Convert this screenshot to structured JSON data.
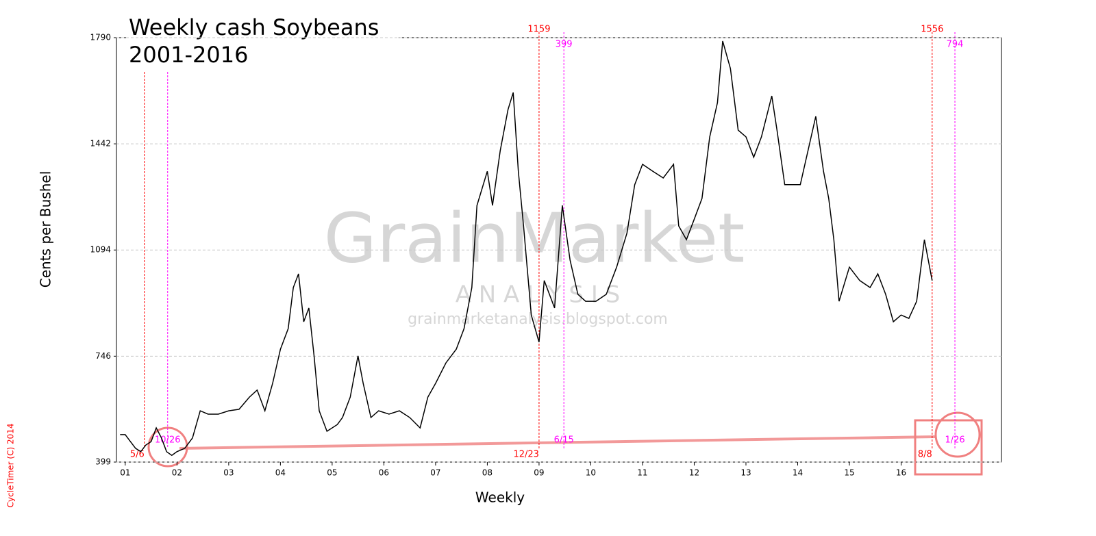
{
  "chart_data": {
    "type": "line",
    "title": "Weekly cash Soybeans",
    "subtitle": "2001-2016",
    "y_label": "Cents per Bushel",
    "x_label": "Weekly",
    "watermark": [
      "GrainMarket",
      "A N A L Y S I S",
      "grainmarketanalysis.blogspot.com"
    ],
    "credit": "CycleTimer (C) 2014",
    "color": "#000000",
    "grid": true,
    "xlim": [
      2000.83,
      2017.94
    ],
    "ylim": [
      399,
      1790
    ],
    "yticks": [
      399,
      746,
      1094,
      1442,
      1790
    ],
    "xticks": [
      {
        "value": 2001,
        "label": "01"
      },
      {
        "value": 2002,
        "label": "02"
      },
      {
        "value": 2003,
        "label": "03"
      },
      {
        "value": 2004,
        "label": "04"
      },
      {
        "value": 2005,
        "label": "05"
      },
      {
        "value": 2006,
        "label": "06"
      },
      {
        "value": 2007,
        "label": "07"
      },
      {
        "value": 2008,
        "label": "08"
      },
      {
        "value": 2009,
        "label": "09"
      },
      {
        "value": 2010,
        "label": "10"
      },
      {
        "value": 2011,
        "label": "11"
      },
      {
        "value": 2012,
        "label": "12"
      },
      {
        "value": 2013,
        "label": "13"
      },
      {
        "value": 2014,
        "label": "14"
      },
      {
        "value": 2015,
        "label": "15"
      },
      {
        "value": 2016,
        "label": "16"
      }
    ],
    "x": [
      2000.9,
      2001.0,
      2001.1,
      2001.2,
      2001.3,
      2001.4,
      2001.5,
      2001.6,
      2001.7,
      2001.8,
      2001.9,
      2002.0,
      2002.15,
      2002.3,
      2002.45,
      2002.6,
      2002.8,
      2003.0,
      2003.2,
      2003.4,
      2003.55,
      2003.7,
      2003.85,
      2004.0,
      2004.15,
      2004.25,
      2004.35,
      2004.45,
      2004.55,
      2004.65,
      2004.75,
      2004.9,
      2005.1,
      2005.2,
      2005.35,
      2005.5,
      2005.6,
      2005.75,
      2005.9,
      2006.1,
      2006.3,
      2006.5,
      2006.7,
      2006.85,
      2007.0,
      2007.2,
      2007.4,
      2007.55,
      2007.7,
      2007.8,
      2008.0,
      2008.1,
      2008.25,
      2008.4,
      2008.5,
      2008.6,
      2008.7,
      2008.85,
      2009.0,
      2009.1,
      2009.3,
      2009.45,
      2009.6,
      2009.75,
      2009.9,
      2010.1,
      2010.3,
      2010.5,
      2010.7,
      2010.85,
      2011.0,
      2011.2,
      2011.4,
      2011.6,
      2011.7,
      2011.85,
      2012.0,
      2012.15,
      2012.3,
      2012.45,
      2012.55,
      2012.7,
      2012.85,
      2013.0,
      2013.15,
      2013.3,
      2013.5,
      2013.6,
      2013.75,
      2013.9,
      2014.05,
      2014.2,
      2014.35,
      2014.5,
      2014.6,
      2014.7,
      2014.8,
      2015.0,
      2015.2,
      2015.4,
      2015.55,
      2015.7,
      2015.85,
      2016.0,
      2016.15,
      2016.3,
      2016.45,
      2016.6
    ],
    "values": [
      489,
      489,
      466,
      444,
      433,
      455,
      466,
      511,
      478,
      433,
      421,
      433,
      444,
      478,
      567,
      556,
      556,
      567,
      572,
      612,
      635,
      567,
      657,
      769,
      836,
      971,
      1016,
      859,
      904,
      747,
      567,
      500,
      522,
      545,
      612,
      747,
      657,
      545,
      567,
      556,
      567,
      545,
      511,
      612,
      657,
      724,
      769,
      836,
      971,
      1240,
      1352,
      1240,
      1420,
      1554,
      1610,
      1352,
      1173,
      881,
      792,
      994,
      904,
      1240,
      1061,
      949,
      926,
      926,
      949,
      1038,
      1150,
      1308,
      1375,
      1352,
      1330,
      1375,
      1173,
      1128,
      1195,
      1263,
      1465,
      1577,
      1779,
      1689,
      1487,
      1465,
      1398,
      1465,
      1599,
      1487,
      1308,
      1308,
      1308,
      1420,
      1532,
      1352,
      1263,
      1128,
      926,
      1038,
      994,
      971,
      1016,
      949,
      859,
      881,
      870,
      926,
      1128,
      994
    ],
    "annotations": [
      {
        "x": 2001.37,
        "color": "#ff0000",
        "bottom": "5/6"
      },
      {
        "x": 2001.82,
        "color": "#ff00ff",
        "bottom": "10/26"
      },
      {
        "x": 2009.0,
        "color": "#ff0000",
        "top": "1159",
        "bottom": "12/23"
      },
      {
        "x": 2009.48,
        "color": "#ff00ff",
        "top": "399",
        "bottom": "6/15"
      },
      {
        "x": 2016.6,
        "color": "#ff0000",
        "top": "1556",
        "bottom": "8/8"
      },
      {
        "x": 2017.04,
        "color": "#ff00ff",
        "top": "794",
        "bottom": "1/26"
      }
    ]
  }
}
